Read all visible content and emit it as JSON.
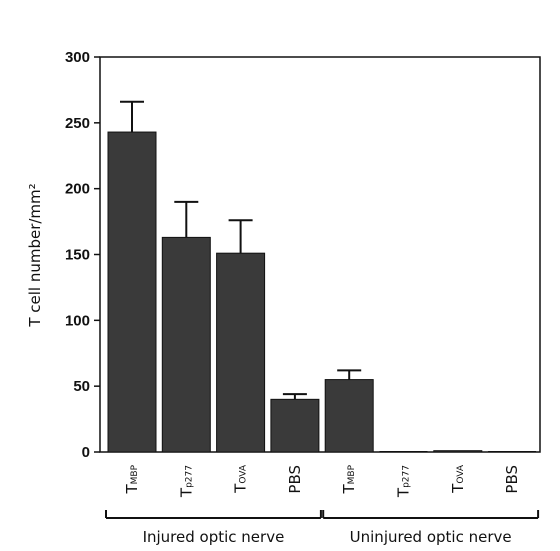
{
  "chart_data": {
    "type": "bar",
    "ylabel": "T cell number/mm²",
    "ylim": [
      0,
      300
    ],
    "yticks": [
      0,
      50,
      100,
      150,
      200,
      250,
      300
    ],
    "categories": [
      {
        "main": "T",
        "sub": "MBP"
      },
      {
        "main": "T",
        "sub": "p277"
      },
      {
        "main": "T",
        "sub": "OVA"
      },
      {
        "main": "PBS",
        "sub": ""
      },
      {
        "main": "T",
        "sub": "MBP"
      },
      {
        "main": "T",
        "sub": "p277"
      },
      {
        "main": "T",
        "sub": "OVA"
      },
      {
        "main": "PBS",
        "sub": ""
      }
    ],
    "values": [
      243,
      163,
      151,
      40,
      55,
      0,
      1,
      0
    ],
    "errors": [
      23,
      27,
      25,
      4,
      7,
      0,
      0,
      0
    ],
    "groups": [
      {
        "label": "Injured optic nerve",
        "from": 0,
        "to": 3
      },
      {
        "label": "Uninjured optic nerve",
        "from": 4,
        "to": 7
      }
    ],
    "colors": {
      "bar": "#3a3a3a",
      "axis": "#111111"
    }
  }
}
